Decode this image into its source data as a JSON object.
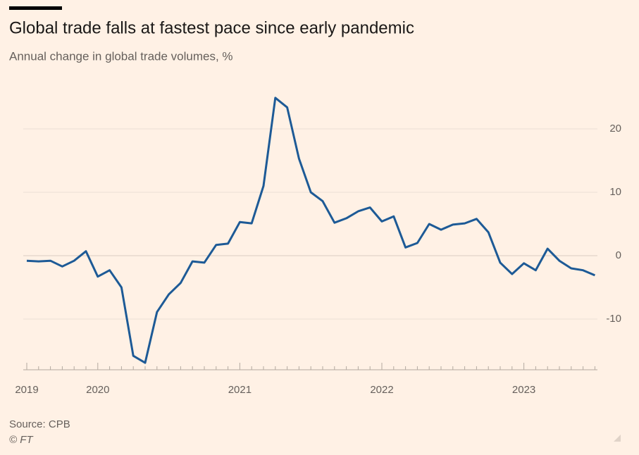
{
  "chart_data": {
    "type": "line",
    "title": "Global trade falls at fastest pace since early pandemic",
    "subtitle": "Annual change in global trade volumes, %",
    "source": "Source: CPB",
    "credit": "© FT",
    "categories": [
      "2019",
      null,
      null,
      null,
      null,
      null,
      "2020",
      null,
      null,
      null,
      null,
      null,
      null,
      null,
      null,
      null,
      null,
      null,
      "2021",
      null,
      null,
      null,
      null,
      null,
      null,
      null,
      null,
      null,
      null,
      null,
      "2022",
      null,
      null,
      null,
      null,
      null,
      null,
      null,
      null,
      null,
      null,
      null,
      "2023",
      null,
      null,
      null,
      null,
      null,
      null
    ],
    "series": [
      {
        "name": "Global trade volumes",
        "color": "#1d5a96",
        "values": [
          -0.8,
          -0.9,
          -0.8,
          -1.7,
          -0.8,
          0.7,
          -3.3,
          -2.3,
          -5,
          -15.8,
          -16.9,
          -8.9,
          -6.1,
          -4.3,
          -0.9,
          -1.1,
          1.7,
          1.9,
          5.3,
          5.1,
          11,
          24.9,
          23.4,
          15.3,
          10,
          8.6,
          5.2,
          5.9,
          7,
          7.6,
          5.4,
          6.2,
          1.3,
          2,
          5,
          4.1,
          4.9,
          5.1,
          5.8,
          3.7,
          -1.1,
          -2.9,
          -1.2,
          -2.3,
          1.1,
          -0.8,
          -2,
          -2.3,
          -3.1
        ]
      }
    ],
    "ylim": [
      -18,
      26
    ],
    "yticks": [
      -10,
      0,
      10,
      20
    ],
    "grid": true
  }
}
